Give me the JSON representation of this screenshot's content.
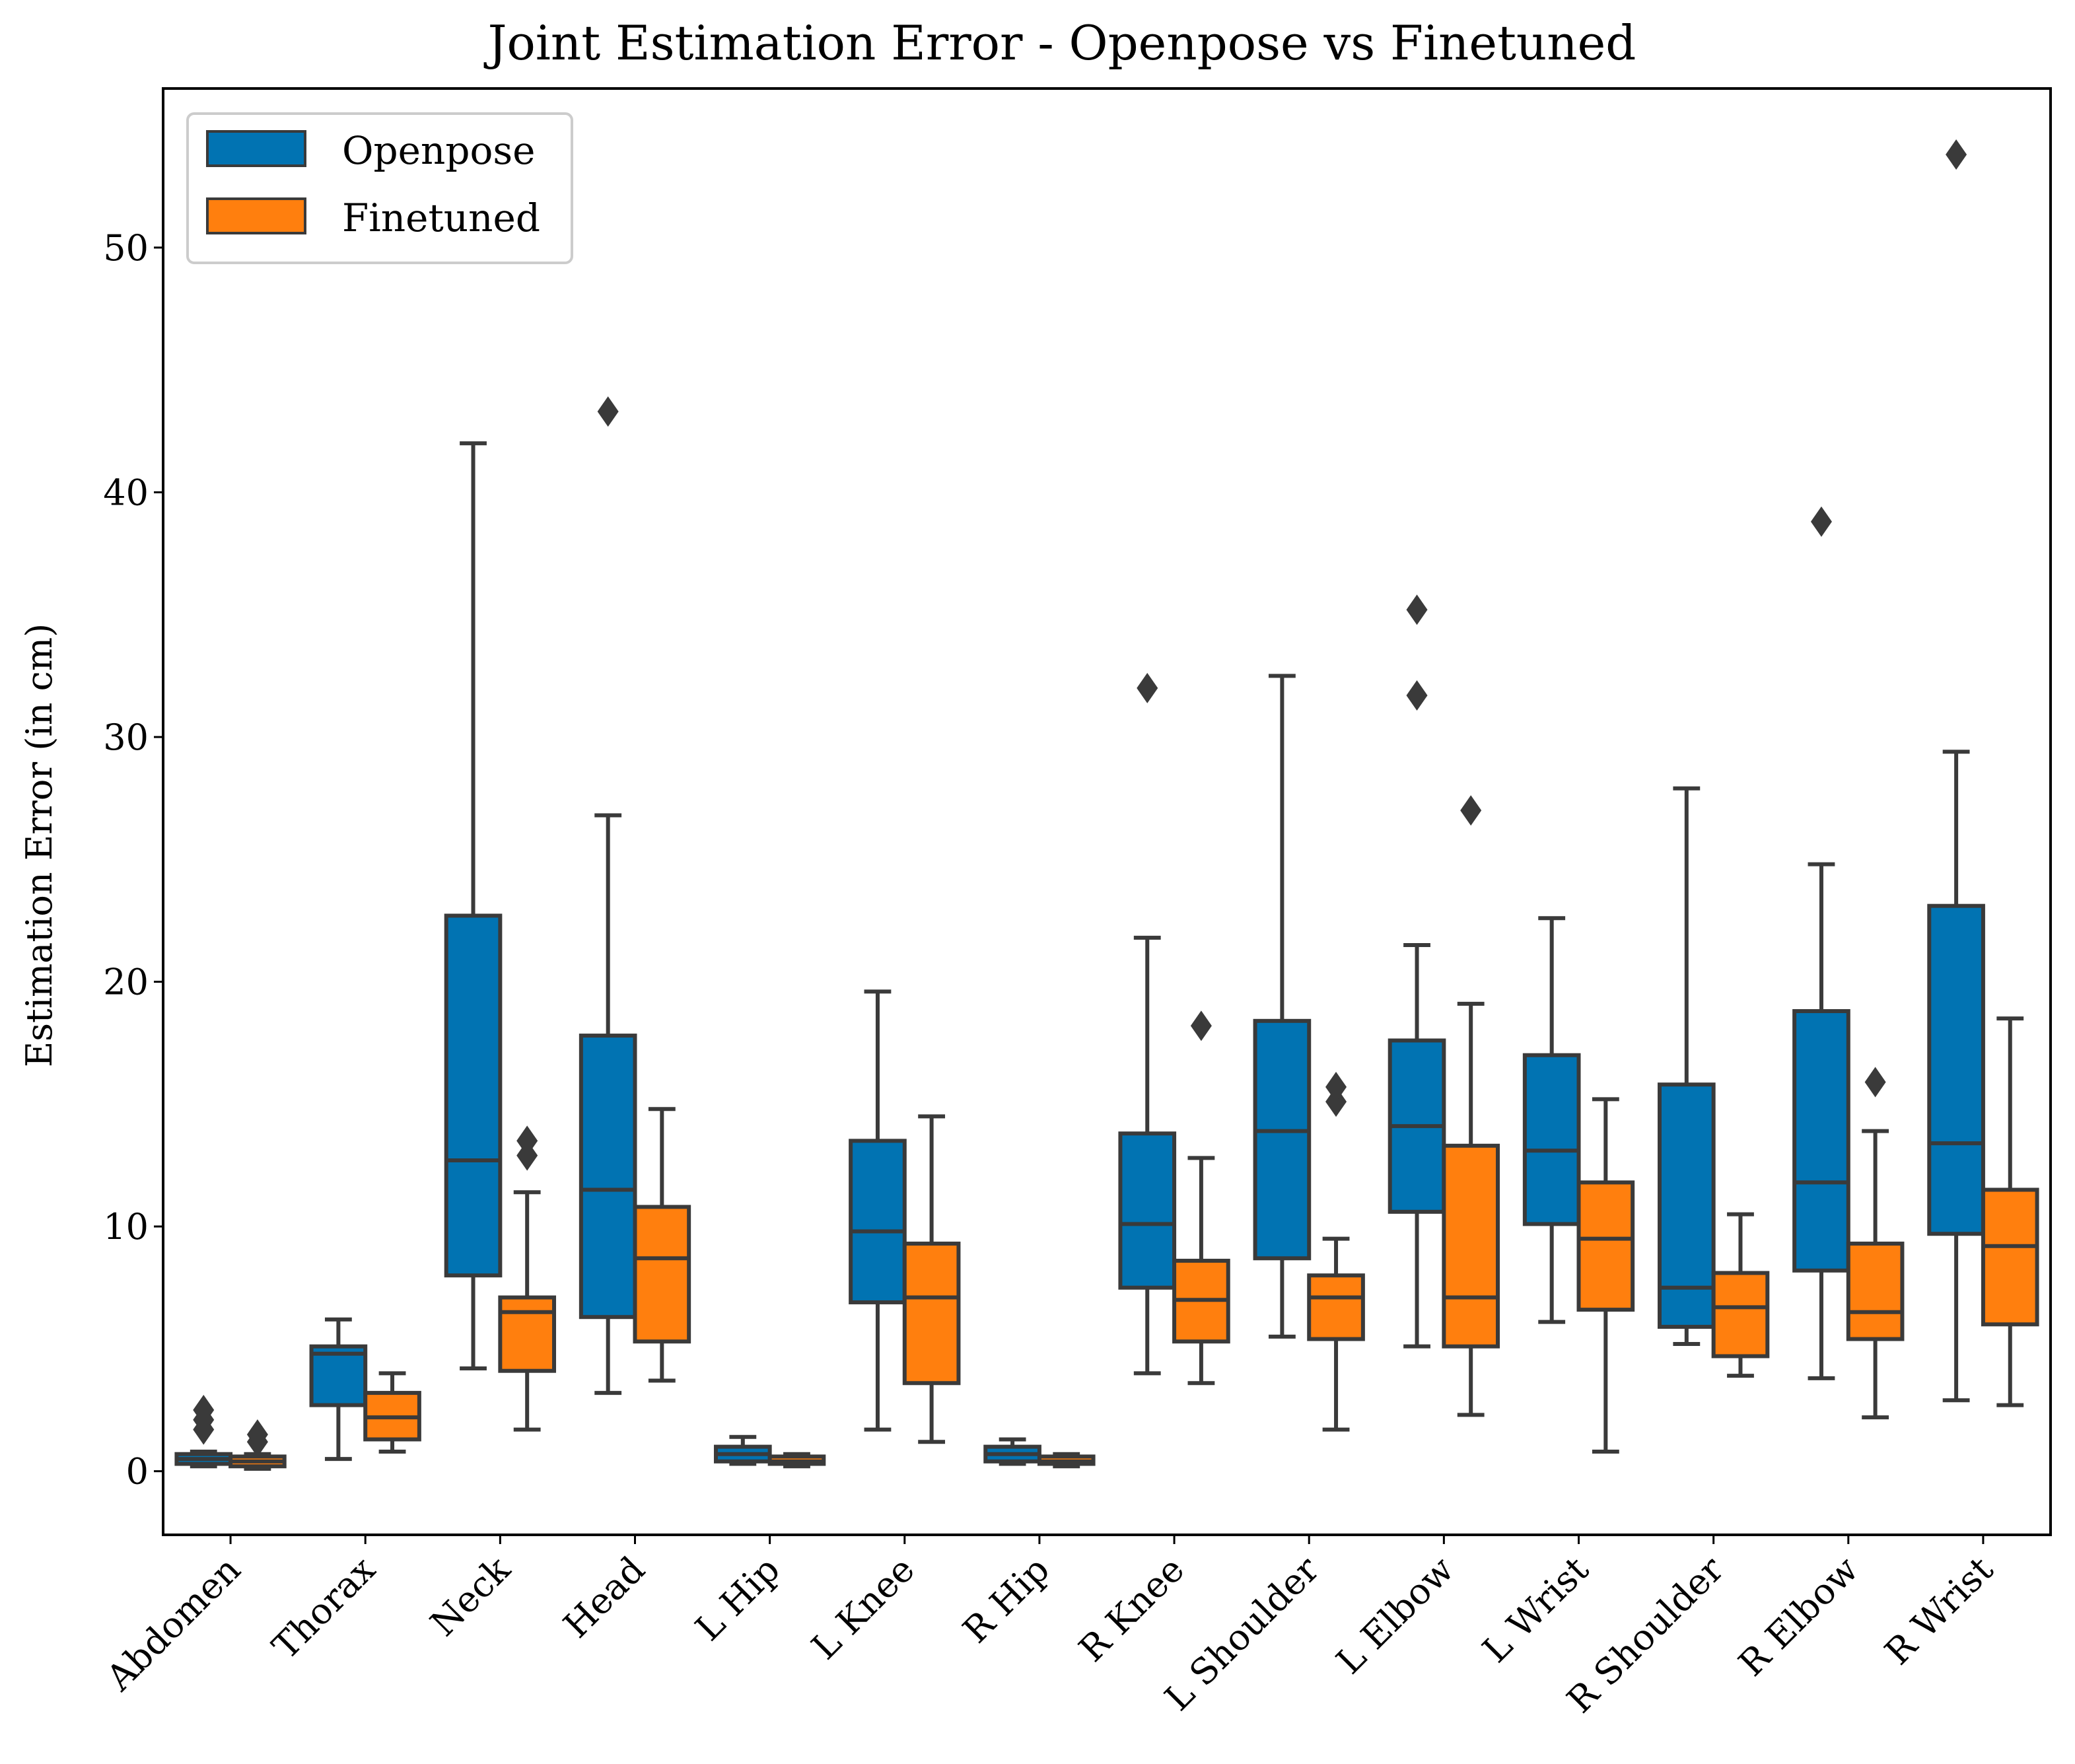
{
  "chart_data": {
    "type": "boxplot",
    "title": "Joint Estimation Error - Openpose vs Finetuned",
    "xlabel": "",
    "ylabel": "Estimation Error (in cm)",
    "ylim": [
      -2.6,
      56.5
    ],
    "yticks": [
      0,
      10,
      20,
      30,
      40,
      50
    ],
    "legend": {
      "position": "top-left",
      "entries": [
        "Openpose",
        "Finetuned"
      ]
    },
    "colors": {
      "Openpose": "#0173b2",
      "Finetuned": "#ff7f0e",
      "edge": "#3a3a3a"
    },
    "categories": [
      "Abdomen",
      "Thorax",
      "Neck",
      "Head",
      "L Hip",
      "L Knee",
      "R Hip",
      "R Knee",
      "L Shoulder",
      "L Elbow",
      "L Wrist",
      "R Shoulder",
      "R Elbow",
      "R Wrist"
    ],
    "series": [
      {
        "name": "Openpose",
        "boxes": [
          {
            "whislo": 0.2,
            "q1": 0.3,
            "med": 0.5,
            "q3": 0.7,
            "whishi": 0.8,
            "fliers": [
              1.7,
              2.1,
              2.5
            ]
          },
          {
            "whislo": 0.5,
            "q1": 2.7,
            "med": 4.8,
            "q3": 5.1,
            "whishi": 6.2,
            "fliers": []
          },
          {
            "whislo": 4.2,
            "q1": 8.0,
            "med": 12.7,
            "q3": 22.7,
            "whishi": 42.0,
            "fliers": []
          },
          {
            "whislo": 3.2,
            "q1": 6.3,
            "med": 11.5,
            "q3": 17.8,
            "whishi": 26.8,
            "fliers": [
              43.3
            ]
          },
          {
            "whislo": 0.3,
            "q1": 0.4,
            "med": 0.7,
            "q3": 1.0,
            "whishi": 1.4,
            "fliers": []
          },
          {
            "whislo": 1.7,
            "q1": 6.9,
            "med": 9.8,
            "q3": 13.5,
            "whishi": 19.6,
            "fliers": []
          },
          {
            "whislo": 0.3,
            "q1": 0.4,
            "med": 0.7,
            "q3": 1.0,
            "whishi": 1.3,
            "fliers": []
          },
          {
            "whislo": 4.0,
            "q1": 7.5,
            "med": 10.1,
            "q3": 13.8,
            "whishi": 21.8,
            "fliers": [
              32.0
            ]
          },
          {
            "whislo": 5.5,
            "q1": 8.7,
            "med": 13.9,
            "q3": 18.4,
            "whishi": 32.5,
            "fliers": []
          },
          {
            "whislo": 5.1,
            "q1": 10.6,
            "med": 14.1,
            "q3": 17.6,
            "whishi": 21.5,
            "fliers": [
              31.7,
              35.2
            ]
          },
          {
            "whislo": 6.1,
            "q1": 10.1,
            "med": 13.1,
            "q3": 17.0,
            "whishi": 22.6,
            "fliers": []
          },
          {
            "whislo": 5.2,
            "q1": 5.9,
            "med": 7.5,
            "q3": 15.8,
            "whishi": 27.9,
            "fliers": []
          },
          {
            "whislo": 3.8,
            "q1": 8.2,
            "med": 11.8,
            "q3": 18.8,
            "whishi": 24.8,
            "fliers": [
              38.8
            ]
          },
          {
            "whislo": 2.9,
            "q1": 9.7,
            "med": 13.4,
            "q3": 23.1,
            "whishi": 29.4,
            "fliers": [
              53.8
            ]
          }
        ]
      },
      {
        "name": "Finetuned",
        "boxes": [
          {
            "whislo": 0.1,
            "q1": 0.2,
            "med": 0.4,
            "q3": 0.6,
            "whishi": 0.7,
            "fliers": [
              1.2,
              1.5
            ]
          },
          {
            "whislo": 0.8,
            "q1": 1.3,
            "med": 2.2,
            "q3": 3.2,
            "whishi": 4.0,
            "fliers": []
          },
          {
            "whislo": 1.7,
            "q1": 4.1,
            "med": 6.5,
            "q3": 7.1,
            "whishi": 11.4,
            "fliers": [
              12.9,
              13.5
            ]
          },
          {
            "whislo": 3.7,
            "q1": 5.3,
            "med": 8.7,
            "q3": 10.8,
            "whishi": 14.8,
            "fliers": []
          },
          {
            "whislo": 0.2,
            "q1": 0.3,
            "med": 0.4,
            "q3": 0.6,
            "whishi": 0.7,
            "fliers": []
          },
          {
            "whislo": 1.2,
            "q1": 3.6,
            "med": 7.1,
            "q3": 9.3,
            "whishi": 14.5,
            "fliers": []
          },
          {
            "whislo": 0.2,
            "q1": 0.3,
            "med": 0.4,
            "q3": 0.6,
            "whishi": 0.7,
            "fliers": []
          },
          {
            "whislo": 3.6,
            "q1": 5.3,
            "med": 7.0,
            "q3": 8.6,
            "whishi": 12.8,
            "fliers": [
              18.2
            ]
          },
          {
            "whislo": 1.7,
            "q1": 5.4,
            "med": 7.1,
            "q3": 8.0,
            "whishi": 9.5,
            "fliers": [
              15.1,
              15.7
            ]
          },
          {
            "whislo": 2.3,
            "q1": 5.1,
            "med": 7.1,
            "q3": 13.3,
            "whishi": 19.1,
            "fliers": [
              27.0
            ]
          },
          {
            "whislo": 0.8,
            "q1": 6.6,
            "med": 9.5,
            "q3": 11.8,
            "whishi": 15.2,
            "fliers": []
          },
          {
            "whislo": 3.9,
            "q1": 4.7,
            "med": 6.7,
            "q3": 8.1,
            "whishi": 10.5,
            "fliers": []
          },
          {
            "whislo": 2.2,
            "q1": 5.4,
            "med": 6.5,
            "q3": 9.3,
            "whishi": 13.9,
            "fliers": [
              15.9
            ]
          },
          {
            "whislo": 2.7,
            "q1": 6.0,
            "med": 9.2,
            "q3": 11.5,
            "whishi": 18.5,
            "fliers": []
          }
        ]
      }
    ]
  }
}
